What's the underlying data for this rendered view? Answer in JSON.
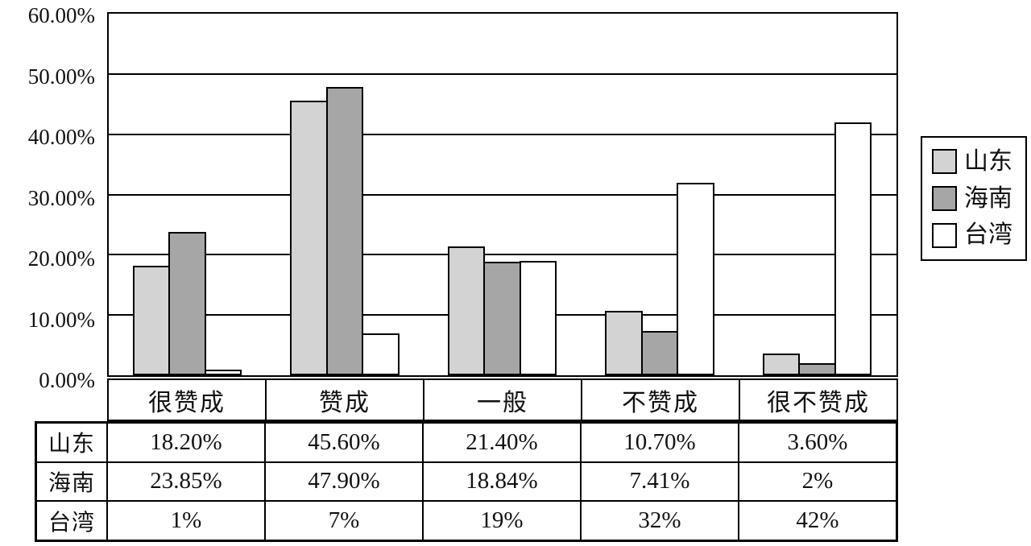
{
  "chart_data": {
    "type": "bar",
    "title": "",
    "xlabel": "",
    "ylabel": "",
    "categories": [
      "很赞成",
      "赞成",
      "一般",
      "不赞成",
      "很不赞成"
    ],
    "series": [
      {
        "name": "山东",
        "color": "#d3d3d3",
        "values": [
          18.2,
          45.6,
          21.4,
          10.7,
          3.6
        ],
        "labels": [
          "18.20%",
          "45.60%",
          "21.40%",
          "10.70%",
          "3.60%"
        ]
      },
      {
        "name": "海南",
        "color": "#a6a6a6",
        "values": [
          23.85,
          47.9,
          18.84,
          7.41,
          2
        ],
        "labels": [
          "23.85%",
          "47.90%",
          "18.84%",
          "7.41%",
          "2%"
        ]
      },
      {
        "name": "台湾",
        "color": "#ffffff",
        "values": [
          1,
          7,
          19,
          32,
          42
        ],
        "labels": [
          "1%",
          "7%",
          "19%",
          "32%",
          "42%"
        ]
      }
    ],
    "ylim": [
      0,
      60
    ],
    "yticks_top_to_bottom": [
      "60.00%",
      "50.00%",
      "40.00%",
      "30.00%",
      "20.00%",
      "10.00%",
      "0.00%"
    ],
    "grid": true,
    "legend_position": "right",
    "data_table_shown": true
  }
}
